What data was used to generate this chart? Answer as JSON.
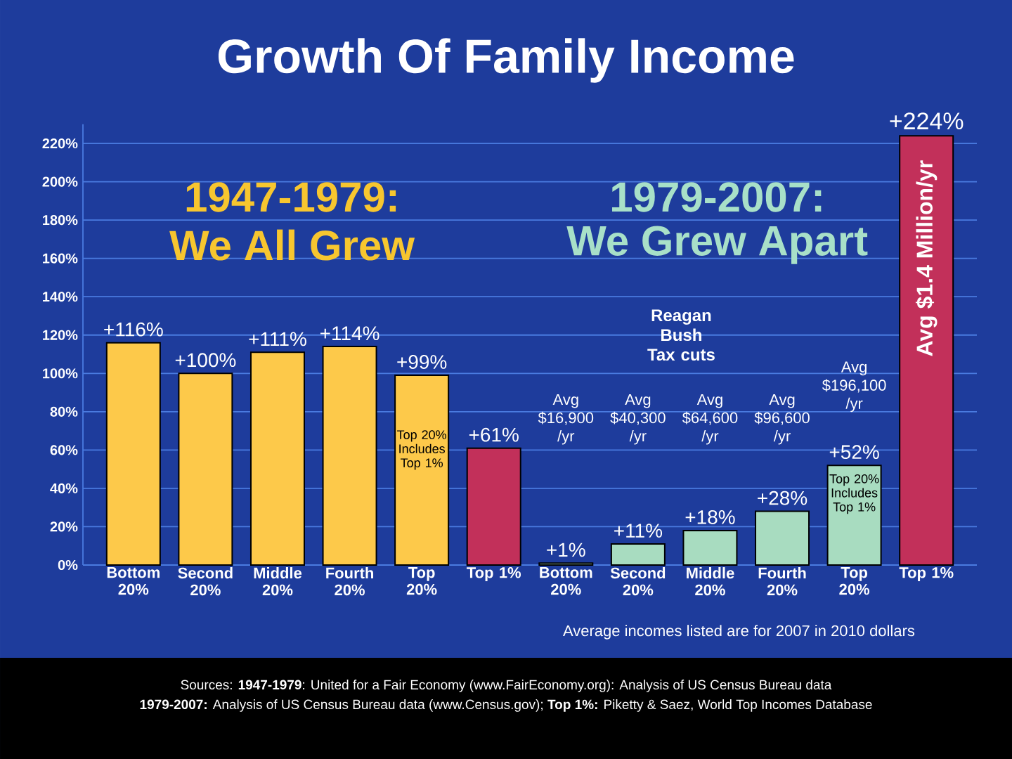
{
  "chart_data": {
    "type": "bar",
    "title": "Growth Of Family Income",
    "categories": [
      "Bottom 20%",
      "Second 20%",
      "Middle 20%",
      "Fourth 20%",
      "Top 20%",
      "Top 1%",
      "Bottom 20%",
      "Second 20%",
      "Middle 20%",
      "Fourth 20%",
      "Top 20%",
      "Top 1%"
    ],
    "values": [
      116,
      100,
      111,
      114,
      99,
      61,
      1,
      11,
      18,
      28,
      52,
      224
    ],
    "value_labels": [
      "+116%",
      "+100%",
      "+111%",
      "+114%",
      "+99%",
      "+61%",
      "+1%",
      "+11%",
      "+18%",
      "+28%",
      "+52%",
      "+224%"
    ],
    "colors": [
      "#fdc94a",
      "#fdc94a",
      "#fdc94a",
      "#fdc94a",
      "#fdc94a",
      "#c2305a",
      "#a8dcc0",
      "#a8dcc0",
      "#a8dcc0",
      "#a8dcc0",
      "#a8dcc0",
      "#c2305a"
    ],
    "ylim": [
      0,
      230
    ],
    "yticks": [
      {
        "value": 0,
        "label": "0%"
      },
      {
        "value": 20,
        "label": "20%"
      },
      {
        "value": 40,
        "label": "40%"
      },
      {
        "value": 60,
        "label": "60%"
      },
      {
        "value": 80,
        "label": "80%"
      },
      {
        "value": 100,
        "label": "100%"
      },
      {
        "value": 120,
        "label": "120%"
      },
      {
        "value": 140,
        "label": "140%"
      },
      {
        "value": 160,
        "label": "160%"
      },
      {
        "value": 180,
        "label": "180%"
      },
      {
        "value": 200,
        "label": "200%"
      },
      {
        "value": 220,
        "label": "220%"
      }
    ],
    "grid": "y",
    "annotations": [
      "1947-1979:",
      "We All Grew",
      "1979-2007:",
      "We Grew Apart",
      "Reagan Bush Tax cuts",
      "Top 20% Includes Top 1%",
      "Avg $16,900 /yr",
      "Avg $40,300 /yr",
      "Avg $64,600 /yr",
      "Avg $96,600 /yr",
      "Avg $196,100 /yr",
      "Top 20% Includes Top 1%",
      "Avg $1.4 Million/yr",
      "Average incomes listed are for 2007 in 2010 dollars",
      "Sources: **1947-1979**: United for a Fair Economy (www.FairEconomy.org): Analysis of US Census Bureau data",
      "**1979-2007:** Analysis of US Census Bureau data (www.Census.gov); **Top 1%:** Piketty & Saez, World Top Incomes Database"
    ]
  }
}
